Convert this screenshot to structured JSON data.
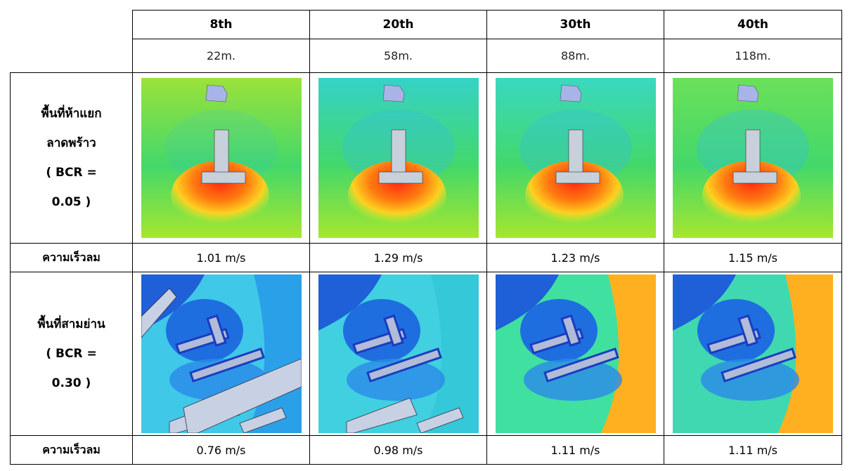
{
  "table": {
    "levels": [
      "8th",
      "20th",
      "30th",
      "40th"
    ],
    "heights": [
      "22m.",
      "58m.",
      "88m.",
      "118m."
    ],
    "sites": [
      {
        "name_lines": [
          "พื้นที่ห้าแยก",
          "ลาดพร้าว",
          "( BCR =",
          "0.05 )"
        ],
        "speed_label": "ความเร็วลม",
        "speeds": [
          "1.01 m/s",
          "1.29 m/s",
          "1.23 m/s",
          "1.15 m/s"
        ]
      },
      {
        "name_lines": [
          "พื้นที่สามย่าน",
          "( BCR =",
          "0.30 )"
        ],
        "speed_label": "ความเร็วลม",
        "speeds": [
          "0.76 m/s",
          "0.98 m/s",
          "1.11 m/s",
          "1.11 m/s"
        ]
      }
    ]
  }
}
